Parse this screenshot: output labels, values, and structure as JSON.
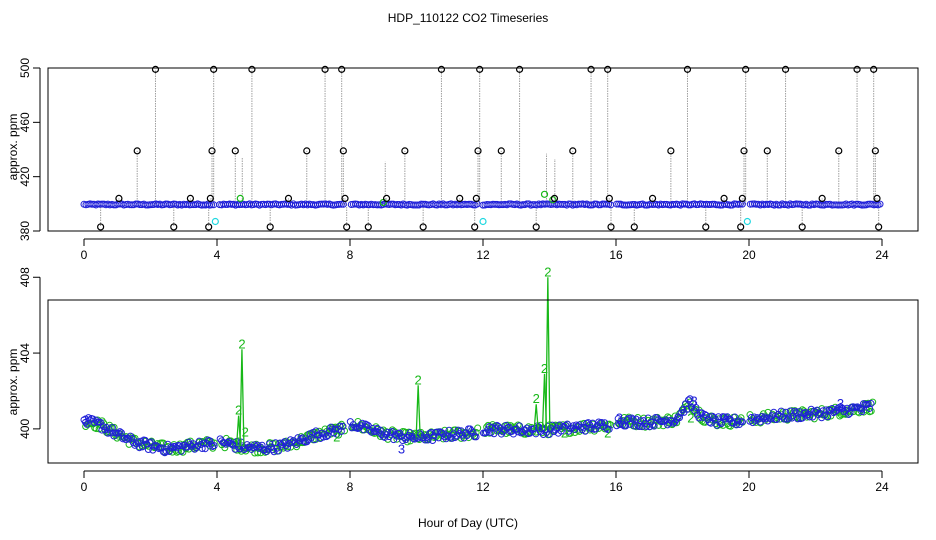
{
  "title": "HDP_110122  CO2 Timeseries",
  "xlabel": "Hour of Day (UTC)",
  "colors": {
    "background": "#ffffff",
    "axis": "#000000",
    "spike_line": "#a0a0a0",
    "flag0": "#000000",
    "flag1": "#2020d8",
    "flag2": "#18b818",
    "flag3": "#20d8e0"
  },
  "chart_data": [
    {
      "type": "scatter",
      "panel": "top",
      "ylabel": "approx. ppm",
      "xlim": [
        0,
        24
      ],
      "ylim": [
        380,
        500
      ],
      "xticks": [
        "0",
        "4",
        "8",
        "12",
        "16",
        "20",
        "24"
      ],
      "yticks": [
        "380",
        "420",
        "460",
        "500"
      ],
      "ytick_values": [
        380,
        420,
        460,
        500
      ],
      "baseline_ppm": 399.5,
      "baseline_gaps": [
        [
          3.95,
          4.05
        ],
        [
          7.85,
          8.0
        ],
        [
          11.85,
          12.0
        ],
        [
          15.85,
          16.0
        ],
        [
          19.85,
          20.0
        ]
      ],
      "outliers": [
        {
          "x": 0.5,
          "y": 383
        },
        {
          "x": 1.05,
          "y": 404
        },
        {
          "x": 1.6,
          "y": 439
        },
        {
          "x": 2.15,
          "y": 499
        },
        {
          "x": 2.7,
          "y": 383
        },
        {
          "x": 3.2,
          "y": 404
        },
        {
          "x": 3.75,
          "y": 383
        },
        {
          "x": 3.8,
          "y": 404
        },
        {
          "x": 3.85,
          "y": 439
        },
        {
          "x": 3.9,
          "y": 499
        },
        {
          "x": 4.55,
          "y": 439
        },
        {
          "x": 5.05,
          "y": 499
        },
        {
          "x": 5.6,
          "y": 383
        },
        {
          "x": 6.15,
          "y": 404
        },
        {
          "x": 6.7,
          "y": 439
        },
        {
          "x": 7.25,
          "y": 499
        },
        {
          "x": 7.75,
          "y": 499
        },
        {
          "x": 7.8,
          "y": 439
        },
        {
          "x": 7.85,
          "y": 404
        },
        {
          "x": 7.9,
          "y": 383
        },
        {
          "x": 8.55,
          "y": 383
        },
        {
          "x": 9.1,
          "y": 404
        },
        {
          "x": 9.65,
          "y": 439
        },
        {
          "x": 10.2,
          "y": 383
        },
        {
          "x": 10.75,
          "y": 499
        },
        {
          "x": 11.3,
          "y": 404
        },
        {
          "x": 11.75,
          "y": 383
        },
        {
          "x": 11.8,
          "y": 404
        },
        {
          "x": 11.85,
          "y": 439
        },
        {
          "x": 11.9,
          "y": 499
        },
        {
          "x": 12.55,
          "y": 439
        },
        {
          "x": 13.1,
          "y": 499
        },
        {
          "x": 13.6,
          "y": 383
        },
        {
          "x": 14.15,
          "y": 404
        },
        {
          "x": 14.7,
          "y": 439
        },
        {
          "x": 15.25,
          "y": 499
        },
        {
          "x": 15.75,
          "y": 499
        },
        {
          "x": 15.8,
          "y": 404
        },
        {
          "x": 15.85,
          "y": 383
        },
        {
          "x": 16.55,
          "y": 383
        },
        {
          "x": 17.1,
          "y": 404
        },
        {
          "x": 17.65,
          "y": 439
        },
        {
          "x": 18.15,
          "y": 499
        },
        {
          "x": 18.7,
          "y": 383
        },
        {
          "x": 19.25,
          "y": 404
        },
        {
          "x": 19.75,
          "y": 383
        },
        {
          "x": 19.8,
          "y": 404
        },
        {
          "x": 19.85,
          "y": 439
        },
        {
          "x": 19.9,
          "y": 499
        },
        {
          "x": 20.55,
          "y": 439
        },
        {
          "x": 21.1,
          "y": 499
        },
        {
          "x": 21.6,
          "y": 383
        },
        {
          "x": 22.2,
          "y": 404
        },
        {
          "x": 22.7,
          "y": 439
        },
        {
          "x": 23.25,
          "y": 499
        },
        {
          "x": 23.75,
          "y": 499
        },
        {
          "x": 23.8,
          "y": 439
        },
        {
          "x": 23.85,
          "y": 404
        },
        {
          "x": 23.9,
          "y": 383
        }
      ],
      "flag2_points": [
        {
          "x": 4.7,
          "y": 404
        },
        {
          "x": 9.0,
          "y": 401
        },
        {
          "x": 13.85,
          "y": 407
        },
        {
          "x": 14.1,
          "y": 403
        }
      ],
      "flag3_points": [
        {
          "x": 3.95,
          "y": 387
        },
        {
          "x": 12.0,
          "y": 387
        },
        {
          "x": 19.95,
          "y": 387
        }
      ]
    },
    {
      "type": "scatter",
      "panel": "bottom",
      "ylabel": "approx. ppm",
      "xlim": [
        0,
        24
      ],
      "ylim": [
        398.2,
        406.8
      ],
      "xticks": [
        "0",
        "4",
        "8",
        "12",
        "16",
        "20",
        "24"
      ],
      "yticks": [
        "400",
        "404",
        "408"
      ],
      "ytick_values": [
        400,
        404,
        408
      ],
      "trend_points": [
        {
          "x": 0.0,
          "y": 400.4
        },
        {
          "x": 0.5,
          "y": 400.2
        },
        {
          "x": 1.0,
          "y": 399.7
        },
        {
          "x": 1.5,
          "y": 399.3
        },
        {
          "x": 2.0,
          "y": 399.1
        },
        {
          "x": 2.5,
          "y": 398.95
        },
        {
          "x": 3.0,
          "y": 399.05
        },
        {
          "x": 3.5,
          "y": 399.2
        },
        {
          "x": 3.9,
          "y": 399.2
        },
        {
          "x": 4.1,
          "y": 399.3
        },
        {
          "x": 4.5,
          "y": 399.15
        },
        {
          "x": 5.0,
          "y": 399.0
        },
        {
          "x": 5.5,
          "y": 399.0
        },
        {
          "x": 6.0,
          "y": 399.1
        },
        {
          "x": 6.5,
          "y": 399.4
        },
        {
          "x": 7.0,
          "y": 399.7
        },
        {
          "x": 7.8,
          "y": 400.0
        },
        {
          "x": 8.0,
          "y": 400.3
        },
        {
          "x": 8.5,
          "y": 400.0
        },
        {
          "x": 9.0,
          "y": 399.75
        },
        {
          "x": 9.5,
          "y": 399.6
        },
        {
          "x": 10.0,
          "y": 399.55
        },
        {
          "x": 10.5,
          "y": 399.6
        },
        {
          "x": 11.0,
          "y": 399.7
        },
        {
          "x": 11.8,
          "y": 399.8
        },
        {
          "x": 12.0,
          "y": 400.0
        },
        {
          "x": 13.0,
          "y": 399.95
        },
        {
          "x": 14.0,
          "y": 399.95
        },
        {
          "x": 15.0,
          "y": 400.1
        },
        {
          "x": 15.8,
          "y": 400.2
        },
        {
          "x": 16.0,
          "y": 400.4
        },
        {
          "x": 17.0,
          "y": 400.35
        },
        {
          "x": 17.8,
          "y": 400.5
        },
        {
          "x": 18.2,
          "y": 401.4
        },
        {
          "x": 18.6,
          "y": 400.6
        },
        {
          "x": 19.0,
          "y": 400.4
        },
        {
          "x": 19.8,
          "y": 400.4
        },
        {
          "x": 20.0,
          "y": 400.5
        },
        {
          "x": 21.0,
          "y": 400.7
        },
        {
          "x": 22.0,
          "y": 400.8
        },
        {
          "x": 23.0,
          "y": 401.0
        },
        {
          "x": 23.7,
          "y": 401.2
        }
      ],
      "spikes": [
        {
          "x": 4.65,
          "peak": 400.7,
          "label": "2"
        },
        {
          "x": 4.75,
          "peak": 404.2,
          "label": "2"
        },
        {
          "x": 10.05,
          "peak": 402.3,
          "label": "2"
        },
        {
          "x": 13.6,
          "peak": 401.3,
          "label": "2"
        },
        {
          "x": 13.85,
          "peak": 402.9,
          "label": "2"
        },
        {
          "x": 13.95,
          "peak": 408.0,
          "label": "2"
        }
      ],
      "point_labels": [
        {
          "x": 0.05,
          "y": 400.45,
          "label": "3",
          "flag": "flag1"
        },
        {
          "x": 4.85,
          "y": 399.8,
          "label": "2",
          "flag": "flag2"
        },
        {
          "x": 7.6,
          "y": 399.55,
          "label": "2",
          "flag": "flag2"
        },
        {
          "x": 9.55,
          "y": 398.9,
          "label": "3",
          "flag": "flag1"
        },
        {
          "x": 14.45,
          "y": 399.75,
          "label": "2",
          "flag": "flag2"
        },
        {
          "x": 15.75,
          "y": 399.75,
          "label": "2",
          "flag": "flag2"
        },
        {
          "x": 16.1,
          "y": 400.55,
          "label": "3",
          "flag": "flag1"
        },
        {
          "x": 18.25,
          "y": 400.55,
          "label": "2",
          "flag": "flag2"
        },
        {
          "x": 18.35,
          "y": 401.45,
          "label": "3",
          "flag": "flag1"
        },
        {
          "x": 22.75,
          "y": 401.3,
          "label": "3",
          "flag": "flag1"
        },
        {
          "x": 23.4,
          "y": 400.95,
          "label": "3",
          "flag": "flag1"
        }
      ]
    }
  ]
}
